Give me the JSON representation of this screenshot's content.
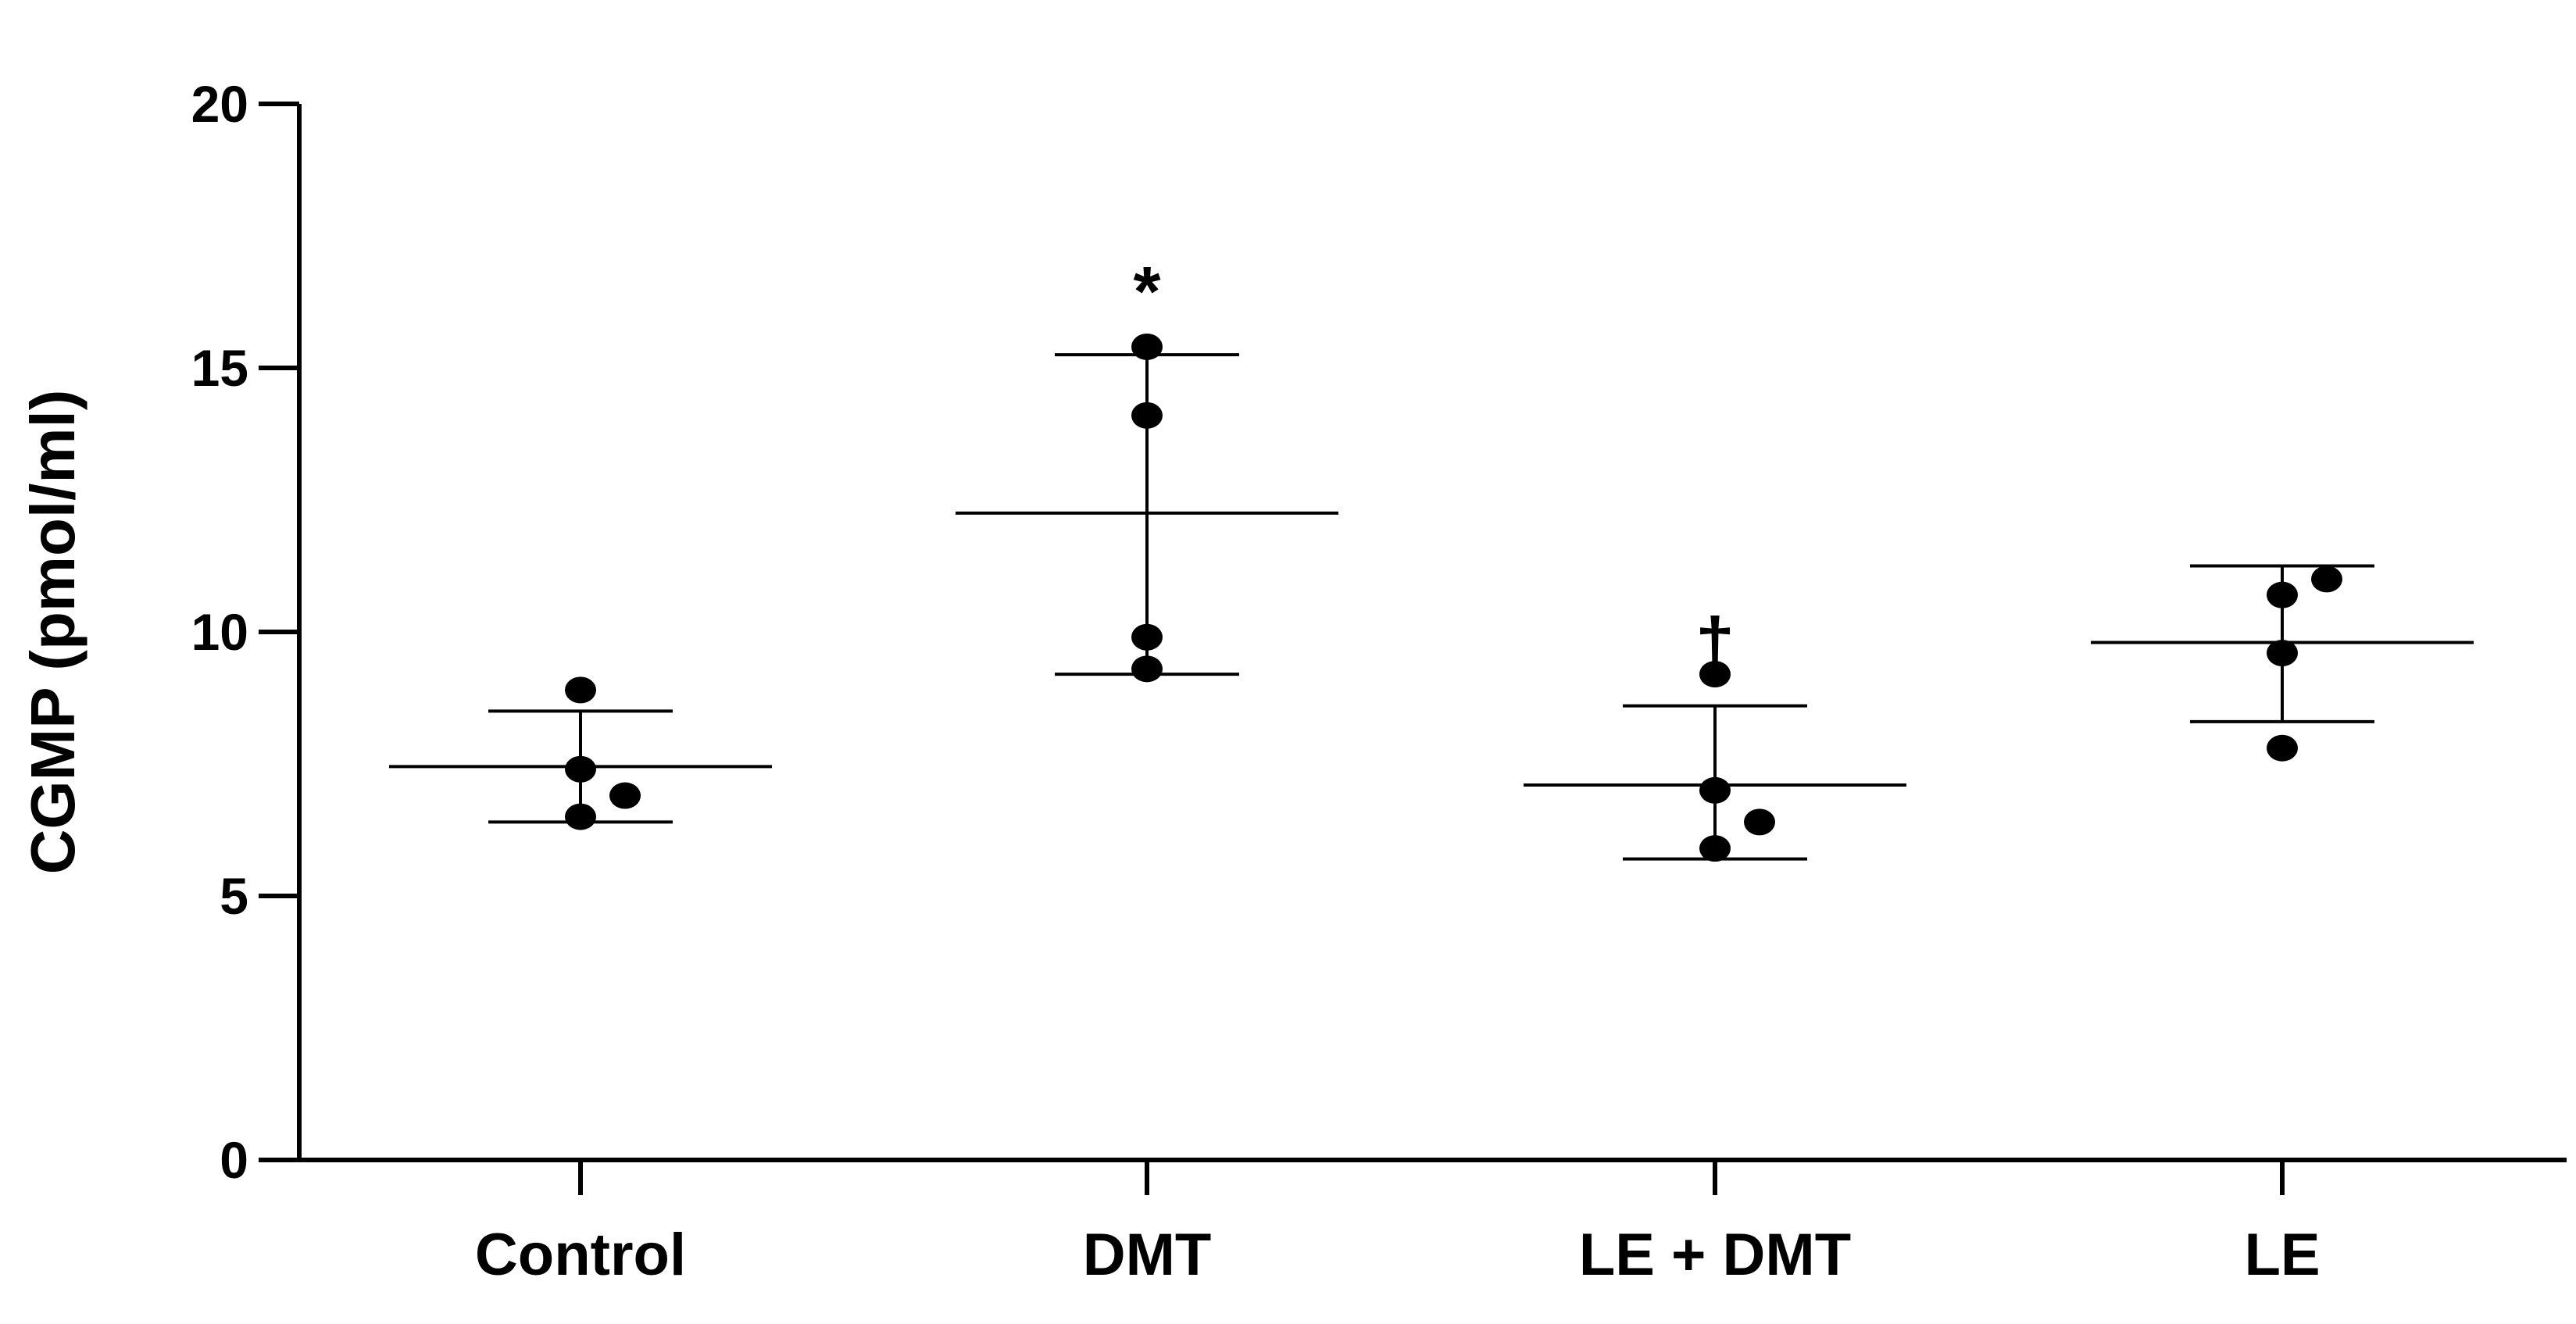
{
  "chart_data": {
    "type": "scatter",
    "ylabel": "CGMP (pmol/ml)",
    "xlabel": "",
    "ylim": [
      0,
      20
    ],
    "yticks": [
      "0",
      "5",
      "10",
      "15",
      "20"
    ],
    "categories": [
      "Control",
      "DMT",
      "LE + DMT",
      "LE"
    ],
    "groups": [
      {
        "category": "Control",
        "points": [
          8.9,
          7.4,
          6.9,
          6.5
        ],
        "point_offsets": [
          0,
          0,
          1,
          0
        ],
        "mean": 7.45,
        "error_upper": 8.5,
        "error_lower": 6.4,
        "annotation": ""
      },
      {
        "category": "DMT",
        "points": [
          15.4,
          14.1,
          9.9,
          9.3
        ],
        "point_offsets": [
          0,
          0,
          0,
          0
        ],
        "mean": 12.25,
        "error_upper": 15.25,
        "error_lower": 9.2,
        "annotation": "*"
      },
      {
        "category": "LE + DMT",
        "points": [
          9.2,
          7.0,
          6.4,
          5.9
        ],
        "point_offsets": [
          0,
          0,
          1,
          0
        ],
        "mean": 7.1,
        "error_upper": 8.6,
        "error_lower": 5.7,
        "annotation": "†"
      },
      {
        "category": "LE",
        "points": [
          11.0,
          10.7,
          9.6,
          7.8
        ],
        "point_offsets": [
          1,
          0,
          0,
          0
        ],
        "mean": 9.8,
        "error_upper": 11.25,
        "error_lower": 8.3,
        "annotation": ""
      }
    ],
    "grid": false,
    "legend": "none",
    "colors": {
      "marks": "#000000",
      "background": "#ffffff"
    }
  }
}
